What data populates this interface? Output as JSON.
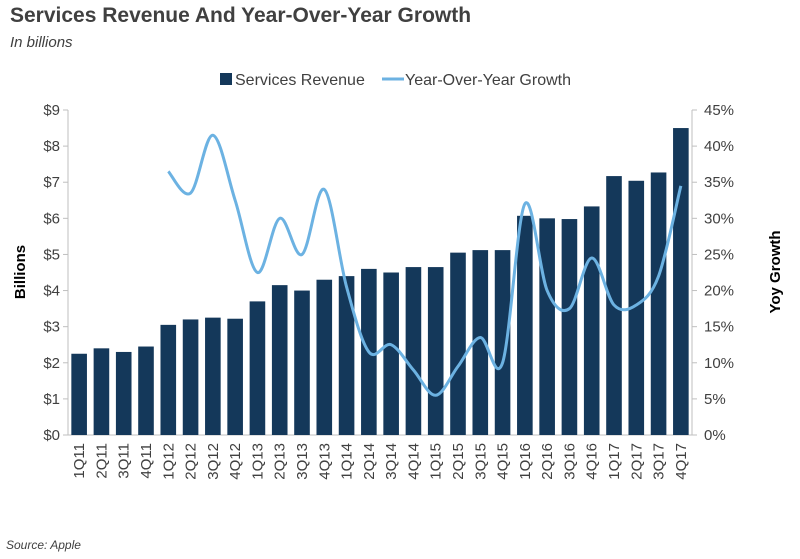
{
  "title": "Services Revenue And Year-Over-Year Growth",
  "subtitle": "In billions",
  "source": "Source: Apple",
  "colors": {
    "bar": "#14385a",
    "line": "#6cb2e2",
    "axis": "#bfbfbf",
    "text": "#404040"
  },
  "chart_data": {
    "type": "bar",
    "categories": [
      "1Q11",
      "2Q11",
      "3Q11",
      "4Q11",
      "1Q12",
      "2Q12",
      "3Q12",
      "4Q12",
      "1Q13",
      "2Q13",
      "3Q13",
      "4Q13",
      "1Q14",
      "2Q14",
      "3Q14",
      "4Q14",
      "1Q15",
      "2Q15",
      "3Q15",
      "4Q15",
      "1Q16",
      "2Q16",
      "3Q16",
      "4Q16",
      "1Q17",
      "2Q17",
      "3Q17",
      "4Q17"
    ],
    "series": [
      {
        "name": "Services Revenue",
        "type": "bar",
        "axis": "left",
        "values": [
          2.25,
          2.4,
          2.3,
          2.45,
          3.05,
          3.2,
          3.25,
          3.22,
          3.7,
          4.15,
          4.0,
          4.3,
          4.4,
          4.6,
          4.5,
          4.65,
          4.65,
          5.05,
          5.12,
          5.12,
          6.07,
          6.0,
          5.98,
          6.33,
          7.17,
          7.04,
          7.27,
          8.5
        ]
      },
      {
        "name": "Year-Over-Year Growth",
        "type": "line",
        "axis": "right",
        "values": [
          null,
          null,
          null,
          null,
          36.5,
          33.5,
          41.5,
          32.5,
          22.5,
          30,
          25,
          34,
          20.5,
          11.5,
          12.5,
          9,
          5.5,
          9.5,
          13.5,
          10,
          32,
          20,
          17.5,
          24.5,
          18,
          18,
          22,
          34.5
        ]
      }
    ],
    "y_left": {
      "label": "Billions",
      "ticks": [
        "$0",
        "$1",
        "$2",
        "$3",
        "$4",
        "$5",
        "$6",
        "$7",
        "$8",
        "$9"
      ],
      "range": [
        0,
        9
      ]
    },
    "y_right": {
      "label": "Yoy Growth",
      "ticks": [
        "0%",
        "5%",
        "10%",
        "15%",
        "20%",
        "25%",
        "30%",
        "35%",
        "40%",
        "45%"
      ],
      "range": [
        0,
        45
      ]
    },
    "legend": "top",
    "grid": false
  }
}
